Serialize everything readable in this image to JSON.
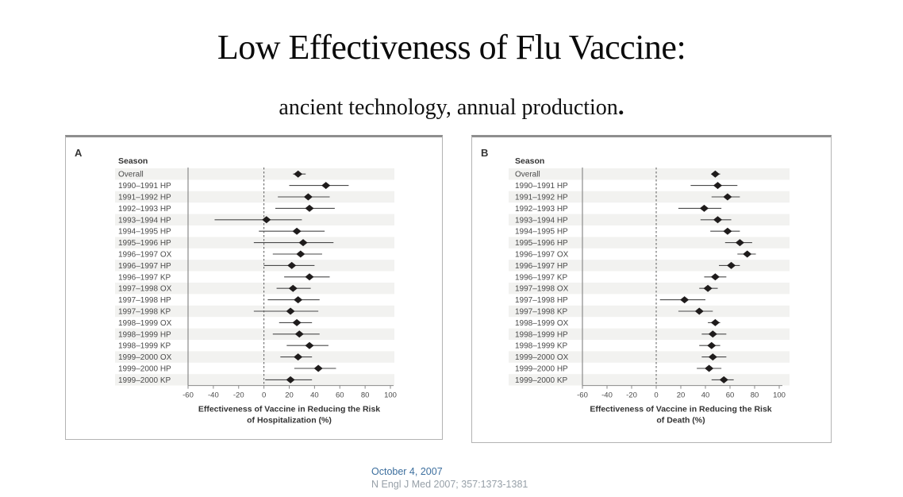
{
  "slide": {
    "title": "Low Effectiveness of Flu Vaccine:",
    "subtitle": "ancient technology, annual production",
    "subtitle_period": "."
  },
  "footer": {
    "date": "October 4, 2007",
    "citation": "N Engl J Med 2007; 357:1373-1381"
  },
  "colors": {
    "stripe": "#f2f2f0",
    "diamond": "#1f1c1c",
    "ci_line": "#4a4a4a",
    "axis_line": "#8a8a8a",
    "zero_line": "#5a5a5a",
    "label_text": "#4a4a4a",
    "header_text": "#343434",
    "date_text": "#3d6f9e",
    "citation_text": "#97a0a8"
  },
  "chart_data": [
    {
      "type": "forest",
      "panel_label": "A",
      "column_header": "Season",
      "xlabel_lines": [
        "Effectiveness of Vaccine in Reducing the Risk",
        "of Hospitalization (%)"
      ],
      "x_ticks": [
        -60,
        -40,
        -20,
        0,
        20,
        40,
        60,
        80,
        100
      ],
      "xlim": [
        -60,
        100
      ],
      "zero_line": 0,
      "grid": false,
      "rows": [
        {
          "label": "Overall",
          "est": 27,
          "lo": 23,
          "hi": 33
        },
        {
          "label": "1990–1991 HP",
          "est": 49,
          "lo": 20,
          "hi": 67
        },
        {
          "label": "1991–1992 HP",
          "est": 35,
          "lo": 11,
          "hi": 52
        },
        {
          "label": "1992–1993 HP",
          "est": 36,
          "lo": 9,
          "hi": 56
        },
        {
          "label": "1993–1994 HP",
          "est": 2,
          "lo": -39,
          "hi": 30
        },
        {
          "label": "1994–1995 HP",
          "est": 26,
          "lo": -4,
          "hi": 48
        },
        {
          "label": "1995–1996 HP",
          "est": 31,
          "lo": -8,
          "hi": 55
        },
        {
          "label": "1996–1997 OX",
          "est": 29,
          "lo": 7,
          "hi": 46
        },
        {
          "label": "1996–1997 HP",
          "est": 22,
          "lo": 0,
          "hi": 40
        },
        {
          "label": "1996–1997 KP",
          "est": 36,
          "lo": 16,
          "hi": 52
        },
        {
          "label": "1997–1998 OX",
          "est": 23,
          "lo": 10,
          "hi": 37
        },
        {
          "label": "1997–1998 HP",
          "est": 27,
          "lo": 3,
          "hi": 44
        },
        {
          "label": "1997–1998 KP",
          "est": 21,
          "lo": -8,
          "hi": 43
        },
        {
          "label": "1998–1999 OX",
          "est": 26,
          "lo": 12,
          "hi": 38
        },
        {
          "label": "1998–1999 HP",
          "est": 28,
          "lo": 7,
          "hi": 44
        },
        {
          "label": "1998–1999 KP",
          "est": 36,
          "lo": 18,
          "hi": 51
        },
        {
          "label": "1999–2000 OX",
          "est": 27,
          "lo": 13,
          "hi": 38
        },
        {
          "label": "1999–2000 HP",
          "est": 43,
          "lo": 24,
          "hi": 57
        },
        {
          "label": "1999–2000 KP",
          "est": 21,
          "lo": 1,
          "hi": 38
        }
      ]
    },
    {
      "type": "forest",
      "panel_label": "B",
      "column_header": "Season",
      "xlabel_lines": [
        "Effectiveness of Vaccine in Reducing the Risk",
        "of Death (%)"
      ],
      "x_ticks": [
        -60,
        -40,
        -20,
        0,
        20,
        40,
        60,
        80,
        100
      ],
      "xlim": [
        -60,
        100
      ],
      "zero_line": 0,
      "grid": false,
      "rows": [
        {
          "label": "Overall",
          "est": 48,
          "lo": 45,
          "hi": 52
        },
        {
          "label": "1990–1991 HP",
          "est": 50,
          "lo": 28,
          "hi": 66
        },
        {
          "label": "1991–1992 HP",
          "est": 58,
          "lo": 45,
          "hi": 68
        },
        {
          "label": "1992–1993 HP",
          "est": 39,
          "lo": 18,
          "hi": 53
        },
        {
          "label": "1993–1994 HP",
          "est": 50,
          "lo": 36,
          "hi": 61
        },
        {
          "label": "1994–1995 HP",
          "est": 58,
          "lo": 44,
          "hi": 68
        },
        {
          "label": "1995–1996 HP",
          "est": 68,
          "lo": 56,
          "hi": 78
        },
        {
          "label": "1996–1997 OX",
          "est": 74,
          "lo": 66,
          "hi": 81
        },
        {
          "label": "1996–1997 HP",
          "est": 61,
          "lo": 51,
          "hi": 68
        },
        {
          "label": "1996–1997 KP",
          "est": 48,
          "lo": 39,
          "hi": 57
        },
        {
          "label": "1997–1998 OX",
          "est": 42,
          "lo": 35,
          "hi": 50
        },
        {
          "label": "1997–1998 HP",
          "est": 23,
          "lo": 3,
          "hi": 40
        },
        {
          "label": "1997–1998 KP",
          "est": 35,
          "lo": 18,
          "hi": 46
        },
        {
          "label": "1998–1999 OX",
          "est": 48,
          "lo": 42,
          "hi": 52
        },
        {
          "label": "1998–1999 HP",
          "est": 46,
          "lo": 37,
          "hi": 57
        },
        {
          "label": "1998–1999 KP",
          "est": 45,
          "lo": 35,
          "hi": 52
        },
        {
          "label": "1999–2000 OX",
          "est": 46,
          "lo": 37,
          "hi": 57
        },
        {
          "label": "1999–2000 HP",
          "est": 43,
          "lo": 33,
          "hi": 53
        },
        {
          "label": "1999–2000 KP",
          "est": 55,
          "lo": 45,
          "hi": 63
        }
      ]
    }
  ]
}
